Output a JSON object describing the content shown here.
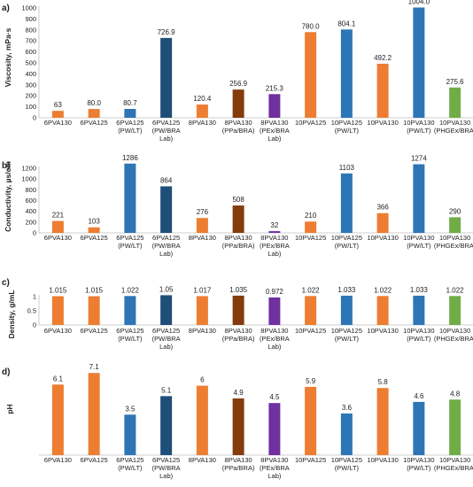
{
  "categories": [
    [
      "6PVA130"
    ],
    [
      "6PVA125"
    ],
    [
      "6PVA125",
      "(PW/LT)"
    ],
    [
      "6PVA125",
      "(PW/BRA",
      "Lab)"
    ],
    [
      "8PVA130"
    ],
    [
      "8PVA130",
      "(PPa/BRA)"
    ],
    [
      "8PVA130",
      "(PEx/BRA",
      "Lab)"
    ],
    [
      "10PVA125"
    ],
    [
      "10PVA125",
      "(PW/LT)"
    ],
    [
      "10PVA130"
    ],
    [
      "10PVA130",
      "(PW/LT)"
    ],
    [
      "10PVA130",
      "(PHGEx/BRA)"
    ]
  ],
  "bar_colors": [
    "#ED7D31",
    "#ED7D31",
    "#2E75B6",
    "#1F4E79",
    "#ED7D31",
    "#843C0C",
    "#7030A0",
    "#ED7D31",
    "#2E75B6",
    "#ED7D31",
    "#2E75B6",
    "#70AD47"
  ],
  "chart_data": [
    {
      "type": "bar",
      "panel": "a)",
      "ylabel": "Viscosity, mPa·s",
      "ylim": [
        0,
        1000
      ],
      "yticks": [
        "0",
        "100",
        "200",
        "300",
        "400",
        "500",
        "600",
        "700",
        "800",
        "900",
        "1000"
      ],
      "values": [
        63,
        80.0,
        80.7,
        726.9,
        120.4,
        256.9,
        215.3,
        780.0,
        804.1,
        492.2,
        1004.0,
        275.6
      ],
      "labels": [
        "63",
        "80.0",
        "80.7",
        "726.9",
        "120.4",
        "256.9",
        "215.3",
        "780.0",
        "804.1",
        "492.2",
        "1004.0",
        "275.6"
      ],
      "grid": false,
      "axis_visible": true
    },
    {
      "type": "bar",
      "panel": "b)",
      "ylabel": "Conductivity, µs/cm",
      "ylim": [
        0,
        1200
      ],
      "yticks": [
        "0",
        "200",
        "400",
        "600",
        "800",
        "1000",
        "1200"
      ],
      "values": [
        221,
        103,
        1286,
        864,
        276,
        508,
        32,
        210,
        1103,
        366,
        1274,
        290
      ],
      "labels": [
        "221",
        "103",
        "1286",
        "864",
        "276",
        "508",
        "32",
        "210",
        "1103",
        "366",
        "1274",
        "290"
      ],
      "grid": false,
      "axis_visible": true
    },
    {
      "type": "bar",
      "panel": "c)",
      "ylabel": "Density, g/mL",
      "ylim": [
        0,
        1
      ],
      "yticks": [
        "0",
        "0.5",
        "1"
      ],
      "values": [
        1.015,
        1.015,
        1.022,
        1.05,
        1.017,
        1.035,
        0.972,
        1.022,
        1.033,
        1.022,
        1.033,
        1.022
      ],
      "labels": [
        "1.015",
        "1.015",
        "1.022",
        "1.05",
        "1.017",
        "1.035",
        "0.972",
        "1.022",
        "1.033",
        "1.022",
        "1.033",
        "1.022"
      ],
      "grid": false,
      "axis_visible": true
    },
    {
      "type": "bar",
      "panel": "d)",
      "ylabel": "pH",
      "ylim": [
        0,
        7.5
      ],
      "yticks": [],
      "values": [
        6.1,
        7.1,
        3.5,
        5.1,
        6,
        4.9,
        4.5,
        5.9,
        3.6,
        5.8,
        4.6,
        4.8
      ],
      "labels": [
        "6.1",
        "7.1",
        "3.5",
        "5.1",
        "6",
        "4.9",
        "4.5",
        "5.9",
        "3.6",
        "5.8",
        "4.6",
        "4.8"
      ],
      "grid": false,
      "axis_visible": false
    }
  ]
}
